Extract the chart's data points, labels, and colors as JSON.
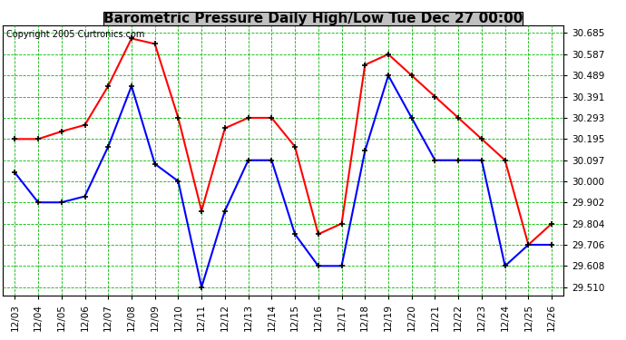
{
  "title": "Barometric Pressure Daily High/Low Tue Dec 27 00:00",
  "copyright": "Copyright 2005 Curtronics.com",
  "dates": [
    "12/03",
    "12/04",
    "12/05",
    "12/06",
    "12/07",
    "12/08",
    "12/09",
    "12/10",
    "12/11",
    "12/12",
    "12/13",
    "12/14",
    "12/15",
    "12/16",
    "12/17",
    "12/18",
    "12/19",
    "12/20",
    "12/21",
    "12/22",
    "12/23",
    "12/24",
    "12/25",
    "12/26"
  ],
  "high_values": [
    30.195,
    30.195,
    30.23,
    30.26,
    30.44,
    30.66,
    30.635,
    30.293,
    29.863,
    30.245,
    30.293,
    30.293,
    30.16,
    29.755,
    29.804,
    30.538,
    30.587,
    30.489,
    30.391,
    30.293,
    30.195,
    30.097,
    29.706,
    29.804
  ],
  "low_values": [
    30.04,
    29.902,
    29.902,
    29.93,
    30.16,
    30.44,
    30.08,
    30.0,
    29.51,
    29.863,
    30.097,
    30.097,
    29.755,
    29.608,
    29.608,
    30.14,
    30.489,
    30.293,
    30.097,
    30.097,
    30.097,
    29.608,
    29.706,
    29.706
  ],
  "high_color": "#ff0000",
  "low_color": "#0000ff",
  "bg_color": "#ffffff",
  "plot_bg_color": "#ffffff",
  "grid_color": "#00bb00",
  "title_bg_color": "#c0c0c0",
  "yticks": [
    29.51,
    29.608,
    29.706,
    29.804,
    29.902,
    30.0,
    30.097,
    30.195,
    30.293,
    30.391,
    30.489,
    30.587,
    30.685
  ],
  "ylim": [
    29.47,
    30.72
  ],
  "marker": "+",
  "marker_color": "#000000",
  "marker_size": 5,
  "linewidth": 1.5,
  "title_fontsize": 11,
  "copyright_fontsize": 7,
  "ytick_fontsize": 7.5,
  "xtick_fontsize": 7.5
}
